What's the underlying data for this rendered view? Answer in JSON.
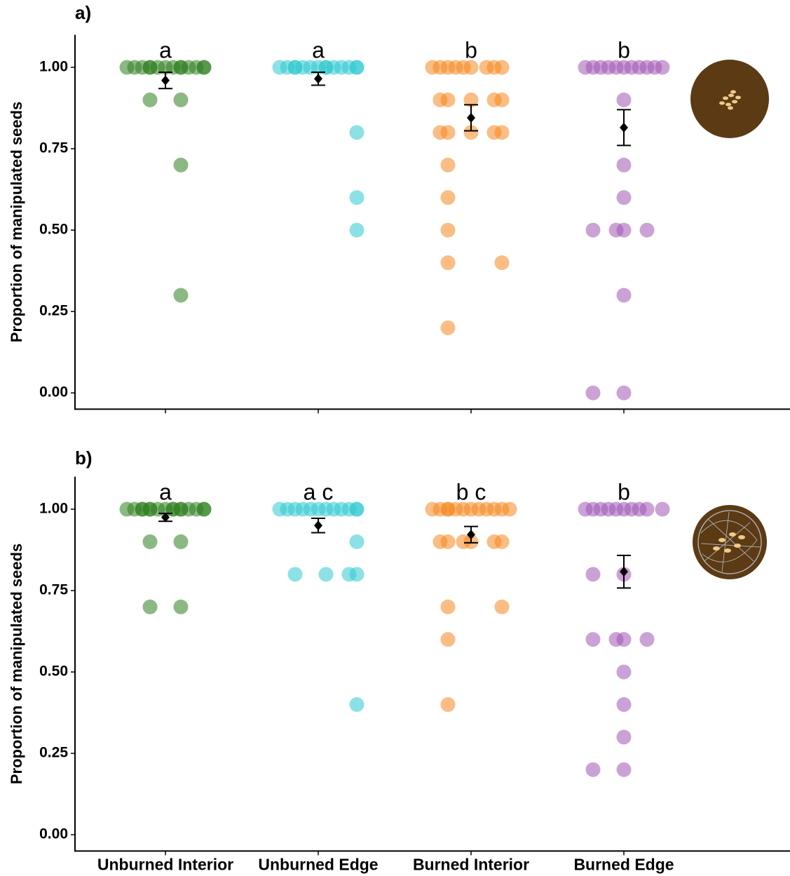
{
  "chart_data": [
    {
      "type": "dotplot",
      "title": "a)",
      "y_label": "Proportion of manipulated seeds",
      "ylim": [
        -0.05,
        1.1
      ],
      "yticks": [
        {
          "value": 0,
          "label": "0.00"
        },
        {
          "value": 0.25,
          "label": "0.25"
        },
        {
          "value": 0.5,
          "label": "0.50"
        },
        {
          "value": 0.75,
          "label": "0.75"
        },
        {
          "value": 1,
          "label": "1.00"
        }
      ],
      "groups": [
        {
          "color": "#2e7d1f",
          "letter": "a",
          "mean": 0.96,
          "error": 0.025,
          "values": [
            1,
            1,
            1,
            1,
            1,
            1,
            1,
            1,
            1,
            1,
            1,
            1,
            1,
            1,
            0.9,
            0.9,
            0.7,
            0.3
          ]
        },
        {
          "color": "#2ec8d0",
          "letter": "a",
          "mean": 0.965,
          "error": 0.02,
          "values": [
            1,
            1,
            1,
            1,
            1,
            1,
            1,
            1,
            1,
            1,
            1,
            1,
            1,
            1,
            0.8,
            0.6,
            0.5
          ]
        },
        {
          "color": "#f5861f",
          "letter": "b",
          "mean": 0.845,
          "error": 0.04,
          "values": [
            1,
            1,
            1,
            1,
            1,
            1,
            1,
            1,
            1,
            0.9,
            0.9,
            0.9,
            0.9,
            0.9,
            0.8,
            0.8,
            0.8,
            0.8,
            0.8,
            0.7,
            0.6,
            0.5,
            0.4,
            0.4,
            0.2
          ]
        },
        {
          "color": "#a055b5",
          "letter": "b",
          "mean": 0.815,
          "error": 0.055,
          "values": [
            1,
            1,
            1,
            1,
            1,
            1,
            1,
            1,
            1,
            1,
            1,
            0.9,
            0.7,
            0.6,
            0.5,
            0.5,
            0.5,
            0.5,
            0.3,
            0,
            0
          ]
        }
      ]
    },
    {
      "type": "dotplot",
      "title": "b)",
      "y_label": "Proportion of manipulated seeds",
      "ylim": [
        -0.05,
        1.1
      ],
      "yticks": [
        {
          "value": 0,
          "label": "0.00"
        },
        {
          "value": 0.25,
          "label": "0.25"
        },
        {
          "value": 0.5,
          "label": "0.50"
        },
        {
          "value": 0.75,
          "label": "0.75"
        },
        {
          "value": 1,
          "label": "1.00"
        }
      ],
      "categories": [
        "Unburned Interior",
        "Unburned Edge",
        "Burned Interior",
        "Burned Edge"
      ],
      "groups": [
        {
          "color": "#2e7d1f",
          "letter": "a",
          "mean": 0.975,
          "error": 0.012,
          "values": [
            1,
            1,
            1,
            1,
            1,
            1,
            1,
            1,
            1,
            1,
            1,
            1,
            1,
            1,
            1,
            1,
            0.9,
            0.9,
            0.7,
            0.7
          ]
        },
        {
          "color": "#2ec8d0",
          "letter": "a c",
          "mean": 0.95,
          "error": 0.022,
          "values": [
            1,
            1,
            1,
            1,
            1,
            1,
            1,
            1,
            1,
            1,
            1,
            1,
            0.9,
            0.8,
            0.8,
            0.8,
            0.8,
            0.4
          ]
        },
        {
          "color": "#f5861f",
          "letter": "b c",
          "mean": 0.922,
          "error": 0.025,
          "values": [
            1,
            1,
            1,
            1,
            1,
            1,
            1,
            1,
            1,
            1,
            1,
            1,
            0.9,
            0.9,
            0.9,
            0.9,
            0.9,
            0.9,
            0.7,
            0.7,
            0.6,
            0.4
          ]
        },
        {
          "color": "#a055b5",
          "letter": "b",
          "mean": 0.808,
          "error": 0.05,
          "values": [
            1,
            1,
            1,
            1,
            1,
            1,
            1,
            1,
            1,
            1,
            0.8,
            0.8,
            0.6,
            0.6,
            0.6,
            0.6,
            0.5,
            0.4,
            0.3,
            0.2,
            0.2
          ]
        }
      ]
    }
  ]
}
